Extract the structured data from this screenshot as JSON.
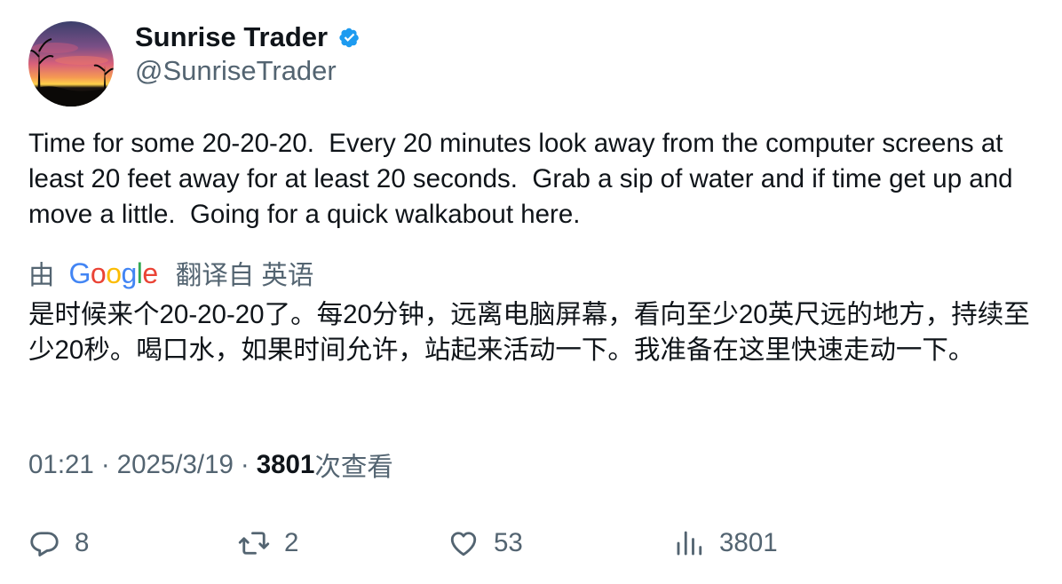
{
  "author": {
    "display_name": "Sunrise Trader",
    "handle": "@SunriseTrader",
    "verified": true,
    "verified_color": "#1d9bf0"
  },
  "tweet": {
    "text": "Time for some 20-20-20.  Every 20 minutes look away from the computer screens at least 20 feet away for at least 20 seconds.  Grab a sip of water and if time get up and move a little.  Going for a quick walkabout here."
  },
  "translation": {
    "by_label": "由",
    "provider": "Google",
    "source_label": "翻译自 英语",
    "text": "是时候来个20-20-20了。每20分钟，远离电脑屏幕，看向至少20英尺远的地方，持续至少20秒。喝口水，如果时间允许，站起来活动一下。我准备在这里快速走动一下。"
  },
  "meta": {
    "time": "01:21",
    "separator": "·",
    "date": "2025/3/19",
    "views_count": "3801",
    "views_label": "次查看"
  },
  "actions": {
    "replies": "8",
    "retweets": "2",
    "likes": "53",
    "views": "3801"
  },
  "colors": {
    "text_primary": "#0f1419",
    "text_secondary": "#536471",
    "google_blue": "#4285f4",
    "google_red": "#ea4335",
    "google_yellow": "#fbbc05",
    "google_green": "#34a853"
  },
  "icons": {
    "reply": "reply-icon",
    "retweet": "retweet-icon",
    "like": "heart-icon",
    "views": "views-bar-chart-icon",
    "verified": "verified-badge-icon"
  }
}
